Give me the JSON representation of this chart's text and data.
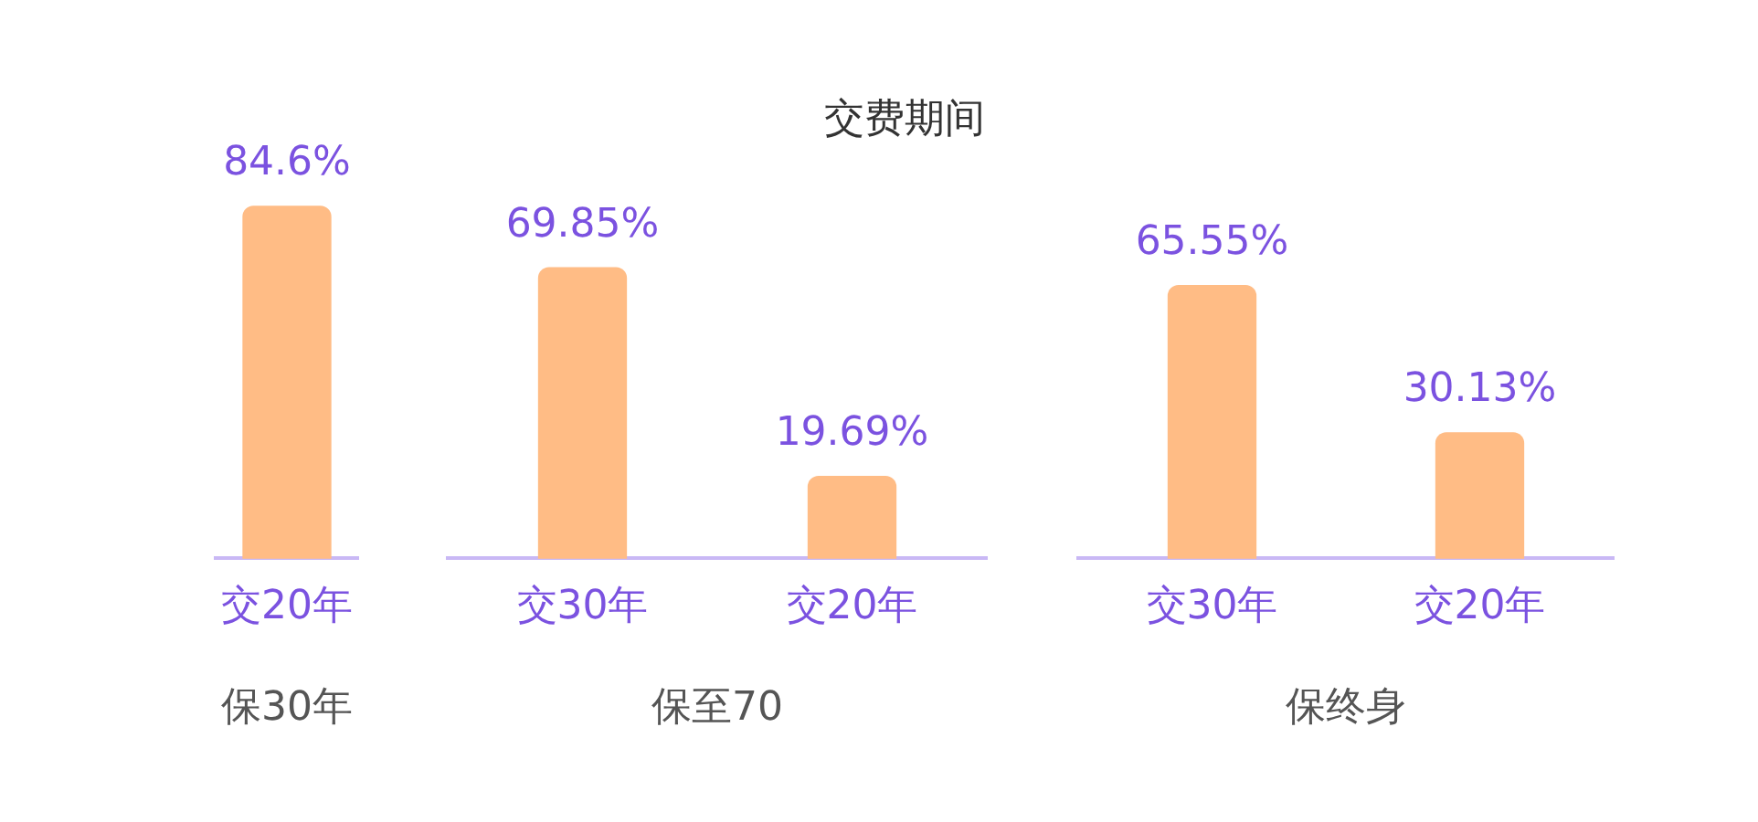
{
  "chart_data": [
    {
      "type": "bar",
      "xlabel": "保30年",
      "categories": [
        "交20年"
      ],
      "values": [
        84.6
      ],
      "value_labels": [
        "84.6%"
      ],
      "color": "#ffbc85"
    },
    {
      "type": "bar",
      "title": "交费期间",
      "xlabel": "保至70",
      "categories": [
        "交30年",
        "交20年"
      ],
      "values": [
        69.85,
        19.69
      ],
      "value_labels": [
        "69.85%",
        "19.69%"
      ],
      "color": "#ffbc85"
    },
    {
      "type": "bar",
      "xlabel": "保终身",
      "categories": [
        "交30年",
        "交20年"
      ],
      "values": [
        65.55,
        30.13
      ],
      "value_labels": [
        "65.55%",
        "30.13%"
      ],
      "color": "#ffbc85"
    }
  ]
}
